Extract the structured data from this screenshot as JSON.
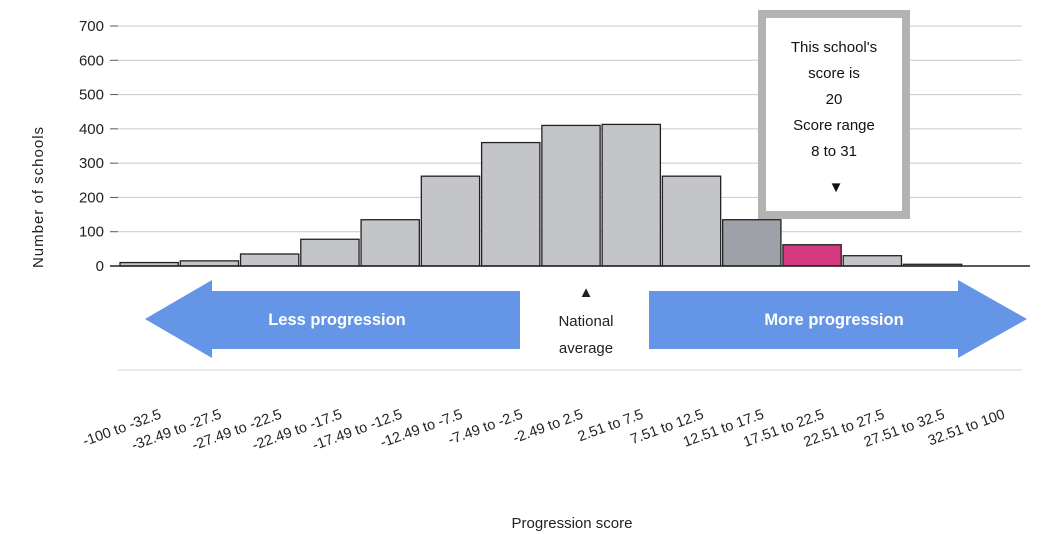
{
  "chart_data": {
    "type": "bar",
    "ylabel": "Number of schools",
    "xlabel": "Progression score",
    "ylim": [
      0,
      700
    ],
    "yticks": [
      0,
      100,
      200,
      300,
      400,
      500,
      600,
      700
    ],
    "grid": true,
    "categories": [
      "-100 to -32.5",
      "-32.49 to -27.5",
      "-27.49 to -22.5",
      "-22.49 to -17.5",
      "-17.49 to -12.5",
      "-12.49 to -7.5",
      "-7.49 to -2.5",
      "-2.49 to 2.5",
      "2.51 to 7.5",
      "7.51 to 12.5",
      "12.51 to 17.5",
      "17.51 to 22.5",
      "22.51 to 27.5",
      "27.51 to 32.5",
      "32.51 to 100"
    ],
    "values": [
      10,
      15,
      35,
      78,
      135,
      262,
      360,
      410,
      413,
      262,
      135,
      62,
      30,
      5,
      0
    ],
    "highlight_index": 11,
    "colors": {
      "bar": "#c4c5c8",
      "bar_dark": "#9ea1a7",
      "highlight": "#d63a7e",
      "arrow": "#6495e6",
      "grid": "#c9c9c9"
    }
  },
  "annotations": {
    "less": "Less progression",
    "more": "More progression",
    "national_marker": "▲",
    "national_line1": "National",
    "national_line2": "average",
    "callout_lines": [
      "This school's",
      "score is",
      "20",
      "Score range",
      "8 to 31"
    ],
    "callout_marker": "▼"
  }
}
